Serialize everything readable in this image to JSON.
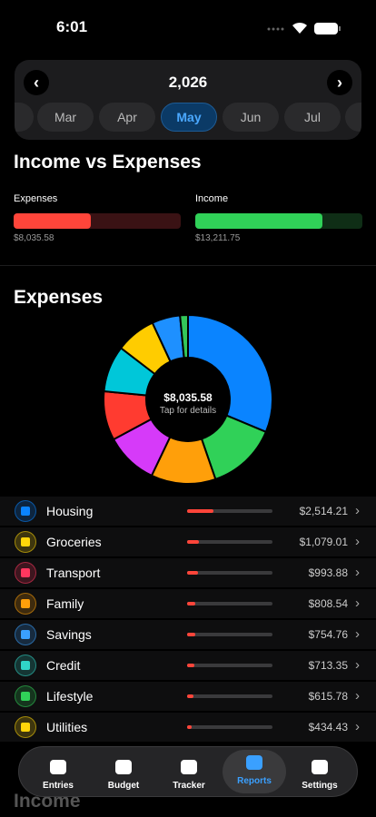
{
  "status": {
    "time": "6:01"
  },
  "picker": {
    "year": "2,026",
    "months": [
      "Mar",
      "Apr",
      "May",
      "Jun",
      "Jul"
    ],
    "selected_month": 2
  },
  "sections": {
    "income_vs_expenses": "Income vs Expenses",
    "next": "Income"
  },
  "chart_data": [
    {
      "type": "bar",
      "categories": [
        "Expenses",
        "Income"
      ],
      "values": [
        8035.58,
        13211.75
      ],
      "value_labels": [
        "$8,035.58",
        "$13,211.75"
      ],
      "colors": [
        "#ff453a",
        "#30d158"
      ],
      "track_colors": [
        "#3a1214",
        "#0f2e16"
      ],
      "xlim": [
        0,
        17400
      ]
    },
    {
      "type": "pie",
      "title": "Expenses",
      "total": 8035.58,
      "total_label": "$8,035.58",
      "subtitle": "Tap for details",
      "categories": [
        "Housing",
        "Groceries",
        "Transport",
        "Family",
        "Savings",
        "Credit",
        "Lifestyle",
        "Utilities",
        null
      ],
      "values": [
        2514.21,
        1079.01,
        993.88,
        808.54,
        754.76,
        713.35,
        615.78,
        434.43,
        121.62
      ],
      "value_labels": [
        "$2,514.21",
        "$1,079.01",
        "$993.88",
        "$808.54",
        "$754.76",
        "$713.35",
        "$615.78",
        "$434.43",
        null
      ],
      "colors": [
        "#0a84ff",
        "#30d158",
        "#ff9f0a",
        "#d63af9",
        "#ff3b30",
        "#00c7d9",
        "#ffcc00",
        "#1e90ff",
        "#34c759"
      ],
      "icon_colors": [
        "#0a84ff",
        "#ffd60a",
        "#ff375f",
        "#ff9f0a",
        "#3aa0ff",
        "#30d5c8",
        "#30d158",
        "#ffd60a"
      ]
    }
  ],
  "tabs": [
    "Entries",
    "Budget",
    "Tracker",
    "Reports",
    "Settings"
  ],
  "active_tab": 3
}
